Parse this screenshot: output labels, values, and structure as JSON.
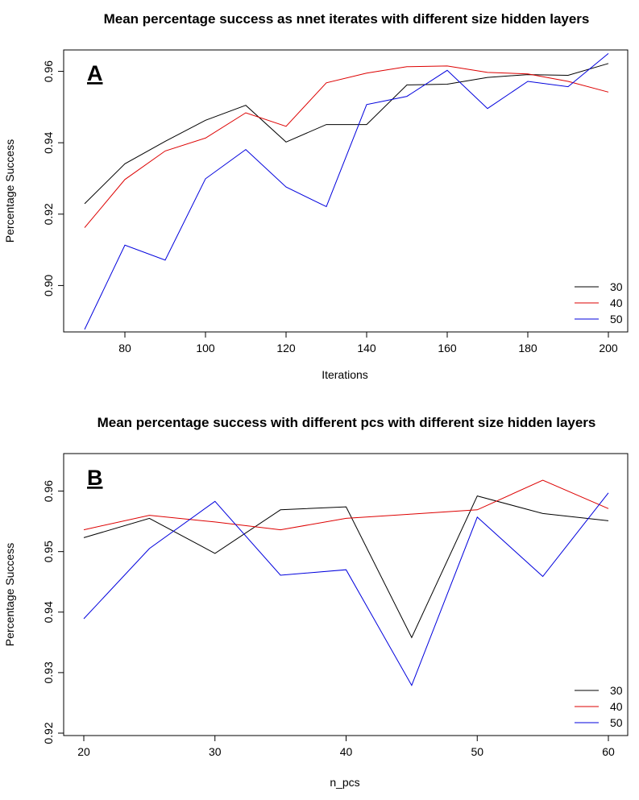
{
  "chart_data": [
    {
      "type": "line",
      "title": "Mean percentage success as nnet iterates with different size hidden layers",
      "panel_label": "A",
      "xlabel": "Iterations",
      "ylabel": "Percentage Success",
      "xlim": [
        70,
        200
      ],
      "ylim": [
        0.887,
        0.966
      ],
      "x_ticks": [
        80,
        100,
        120,
        140,
        160,
        180,
        200
      ],
      "y_ticks": [
        0.9,
        0.92,
        0.94,
        0.96
      ],
      "y_tick_labels": [
        "0.90",
        "0.92",
        "0.94",
        "0.96"
      ],
      "grid": false,
      "legend_position": "bottom-right",
      "x": [
        70,
        80,
        90,
        100,
        110,
        120,
        130,
        140,
        150,
        160,
        170,
        180,
        190,
        200
      ],
      "series": [
        {
          "name": "30",
          "color": "#000000",
          "values": [
            0.9229,
            0.9341,
            0.9404,
            0.9463,
            0.9505,
            0.9402,
            0.9451,
            0.9451,
            0.9562,
            0.9564,
            0.9583,
            0.9591,
            0.9589,
            0.9622
          ]
        },
        {
          "name": "40",
          "color": "#dd0000",
          "values": [
            0.9162,
            0.9297,
            0.9377,
            0.9413,
            0.9484,
            0.9446,
            0.9568,
            0.9595,
            0.9613,
            0.9615,
            0.9597,
            0.9593,
            0.9572,
            0.9542
          ]
        },
        {
          "name": "50",
          "color": "#0000dd",
          "values": [
            0.8877,
            0.9113,
            0.9071,
            0.9299,
            0.9381,
            0.9276,
            0.9221,
            0.9507,
            0.953,
            0.9603,
            0.9496,
            0.9572,
            0.9557,
            0.965
          ]
        }
      ]
    },
    {
      "type": "line",
      "title": "Mean percentage success with different pcs with different size hidden layers",
      "panel_label": "B",
      "xlabel": "n_pcs",
      "ylabel": "Percentage Success",
      "xlim": [
        20,
        60
      ],
      "ylim": [
        0.9196,
        0.9662
      ],
      "x_ticks": [
        20,
        30,
        40,
        50,
        60
      ],
      "y_ticks": [
        0.92,
        0.93,
        0.94,
        0.95,
        0.96
      ],
      "y_tick_labels": [
        "0.92",
        "0.93",
        "0.94",
        "0.95",
        "0.96"
      ],
      "grid": false,
      "legend_position": "bottom-right",
      "x": [
        20,
        25,
        30,
        35,
        40,
        45,
        50,
        55,
        60
      ],
      "series": [
        {
          "name": "30",
          "color": "#000000",
          "values": [
            0.9523,
            0.9555,
            0.9497,
            0.9569,
            0.9574,
            0.9358,
            0.9592,
            0.9563,
            0.9551
          ]
        },
        {
          "name": "40",
          "color": "#dd0000",
          "values": [
            0.9536,
            0.956,
            0.9549,
            0.9536,
            0.9555,
            0.9562,
            0.9569,
            0.9618,
            0.9571
          ]
        },
        {
          "name": "50",
          "color": "#0000dd",
          "values": [
            0.9389,
            0.9505,
            0.9583,
            0.9461,
            0.947,
            0.9279,
            0.9557,
            0.9459,
            0.9597
          ]
        }
      ]
    }
  ]
}
